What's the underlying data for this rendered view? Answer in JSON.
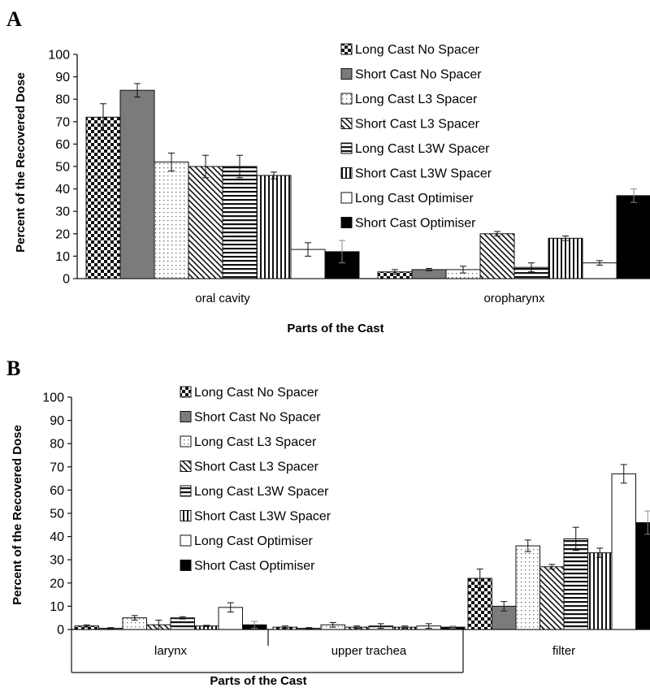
{
  "chart_data": [
    {
      "panel": "A",
      "type": "bar",
      "xlabel": "Parts of the Cast",
      "ylabel": "Percent of the Recovered Dose",
      "ylim": [
        0,
        100
      ],
      "yticks": [
        0,
        10,
        20,
        30,
        40,
        50,
        60,
        70,
        80,
        90,
        100
      ],
      "categories": [
        "oral cavity",
        "oropharynx"
      ],
      "grid": false,
      "legend_position": "top-right",
      "series": [
        {
          "name": "Long Cast No Spacer",
          "pattern": "checker",
          "values": [
            72,
            3
          ],
          "errors": [
            6,
            1
          ]
        },
        {
          "name": "Short Cast No Spacer",
          "pattern": "gray",
          "values": [
            84,
            4
          ],
          "errors": [
            3,
            0.5
          ]
        },
        {
          "name": "Long Cast L3 Spacer",
          "pattern": "dots",
          "values": [
            52,
            4
          ],
          "errors": [
            4,
            1.5
          ]
        },
        {
          "name": "Short Cast L3 Spacer",
          "pattern": "diagonal",
          "values": [
            50,
            20
          ],
          "errors": [
            5,
            1
          ]
        },
        {
          "name": "Long Cast L3W Spacer",
          "pattern": "horizontal",
          "values": [
            50,
            5
          ],
          "errors": [
            5,
            2
          ]
        },
        {
          "name": "Short Cast L3W Spacer",
          "pattern": "vertical",
          "values": [
            46,
            18
          ],
          "errors": [
            1.5,
            1
          ]
        },
        {
          "name": "Long Cast Optimiser",
          "pattern": "white",
          "values": [
            13,
            7
          ],
          "errors": [
            3,
            1
          ]
        },
        {
          "name": "Short Cast Optimiser",
          "pattern": "black",
          "values": [
            12,
            37
          ],
          "errors": [
            5,
            3
          ]
        }
      ]
    },
    {
      "panel": "B",
      "type": "bar",
      "xlabel": "Parts of the Cast",
      "ylabel": "Percent of the Recovered Dose",
      "ylim": [
        0,
        100
      ],
      "yticks": [
        0,
        10,
        20,
        30,
        40,
        50,
        60,
        70,
        80,
        90,
        100
      ],
      "categories": [
        "larynx",
        "upper trachea",
        "filter"
      ],
      "grid": false,
      "legend_position": "top-left",
      "series": [
        {
          "name": "Long Cast No Spacer",
          "pattern": "checker",
          "values": [
            1.5,
            1,
            22
          ],
          "errors": [
            0.5,
            0.5,
            4
          ]
        },
        {
          "name": "Short Cast No Spacer",
          "pattern": "gray",
          "values": [
            0.5,
            0.5,
            10
          ],
          "errors": [
            0.3,
            0.3,
            2
          ]
        },
        {
          "name": "Long Cast L3 Spacer",
          "pattern": "dots",
          "values": [
            5,
            2,
            36
          ],
          "errors": [
            1,
            1,
            2.5
          ]
        },
        {
          "name": "Short Cast L3 Spacer",
          "pattern": "diagonal",
          "values": [
            2,
            1,
            27
          ],
          "errors": [
            2,
            0.5,
            1
          ]
        },
        {
          "name": "Long Cast L3W Spacer",
          "pattern": "horizontal",
          "values": [
            5,
            1.5,
            39
          ],
          "errors": [
            0.5,
            1,
            5
          ]
        },
        {
          "name": "Short Cast L3W Spacer",
          "pattern": "vertical",
          "values": [
            1.5,
            1,
            33
          ],
          "errors": [
            0.3,
            0.5,
            2
          ]
        },
        {
          "name": "Long Cast Optimiser",
          "pattern": "white",
          "values": [
            9.5,
            1.5,
            67
          ],
          "errors": [
            2,
            1,
            4
          ]
        },
        {
          "name": "Short Cast Optimiser",
          "pattern": "black",
          "values": [
            2,
            1,
            46
          ],
          "errors": [
            1.5,
            0.5,
            5
          ]
        }
      ]
    }
  ]
}
